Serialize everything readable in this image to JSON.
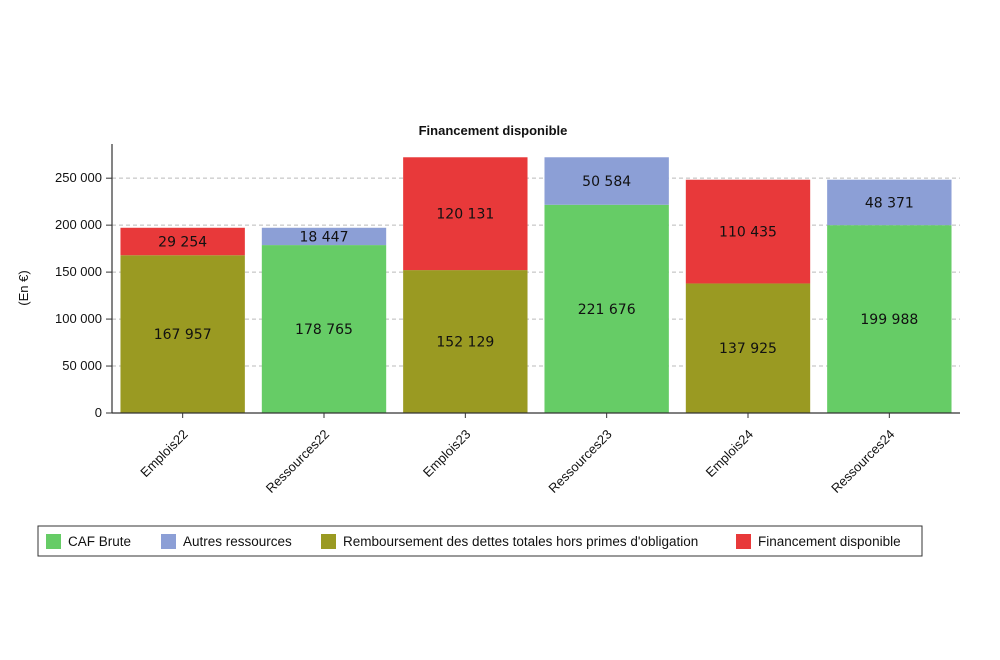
{
  "chart_data": {
    "type": "bar",
    "stacked": true,
    "title": "Financement disponible",
    "xlabel": "",
    "ylabel": "(En €)",
    "ylim": [
      0,
      280000
    ],
    "yticks": [
      "0",
      "50 000",
      "100 000",
      "150 000",
      "200 000",
      "250 000"
    ],
    "ytick_values": [
      0,
      50000,
      100000,
      150000,
      200000,
      250000
    ],
    "grid": true,
    "legend_position": "bottom",
    "categories": [
      "Emplois22",
      "Ressources22",
      "Emplois23",
      "Ressources23",
      "Emplois24",
      "Ressources24"
    ],
    "series": [
      {
        "name": "CAF Brute",
        "color": "#66cc66",
        "values": [
          null,
          178765,
          null,
          221676,
          null,
          199988
        ],
        "labels": [
          "",
          "178 765",
          "",
          "221 676",
          "",
          "199 988"
        ]
      },
      {
        "name": "Autres ressources",
        "color": "#8c9fd6",
        "values": [
          null,
          18447,
          null,
          50584,
          null,
          48371
        ],
        "labels": [
          "",
          "18 447",
          "",
          "50 584",
          "",
          "48 371"
        ]
      },
      {
        "name": "Remboursement des dettes totales hors primes d'obligation",
        "color": "#9a9a22",
        "values": [
          167957,
          null,
          152129,
          null,
          137925,
          null
        ],
        "labels": [
          "167 957",
          "",
          "152 129",
          "",
          "137 925",
          ""
        ]
      },
      {
        "name": "Financement disponible",
        "color": "#e8393a",
        "values": [
          29254,
          null,
          120131,
          null,
          110435,
          null
        ],
        "labels": [
          "29 254",
          "",
          "120 131",
          "",
          "110 435",
          ""
        ]
      }
    ],
    "stack_order": [
      2,
      3,
      0,
      1
    ]
  }
}
